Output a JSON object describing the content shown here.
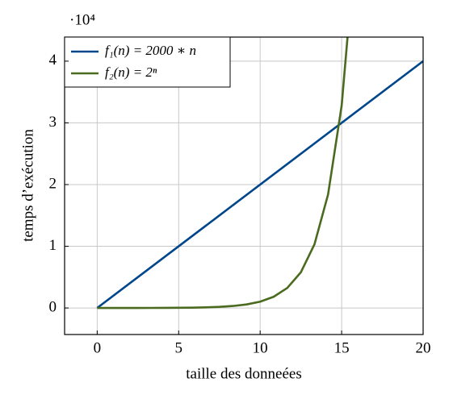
{
  "chart_data": {
    "type": "line",
    "y_multiplier": "·10⁴",
    "xlabel": "taille des donneées",
    "ylabel": "temps d’exécution",
    "xlim": [
      -2,
      20
    ],
    "ylim": [
      -0.43,
      4.39
    ],
    "xticks": [
      0,
      5,
      10,
      15,
      20
    ],
    "yticks": [
      0,
      1,
      2,
      3,
      4
    ],
    "grid": true,
    "legend": "upper left",
    "series": [
      {
        "name": "f₁(n) = 2000 ∗ n",
        "color": "#00468b",
        "x": [
          0,
          20
        ],
        "values": [
          0,
          4
        ]
      },
      {
        "name": "f₂(n) = 2ⁿ",
        "color": "#4a6b1f",
        "x": [
          0,
          0.8333,
          1.6667,
          2.5,
          3.3333,
          4.1667,
          5,
          5.8333,
          6.6667,
          7.5,
          8.3333,
          9.1667,
          10,
          10.8333,
          11.6667,
          12.5,
          13.3333,
          14.1667,
          15,
          15.8333
        ],
        "values": [
          0.0001,
          0.0002,
          0.0003,
          0.0006,
          0.001,
          0.0018,
          0.0032,
          0.0057,
          0.0102,
          0.0181,
          0.0323,
          0.0575,
          0.1024,
          0.1825,
          0.3251,
          0.5793,
          1.0321,
          1.839,
          3.2768,
          5.8386
        ]
      }
    ]
  }
}
